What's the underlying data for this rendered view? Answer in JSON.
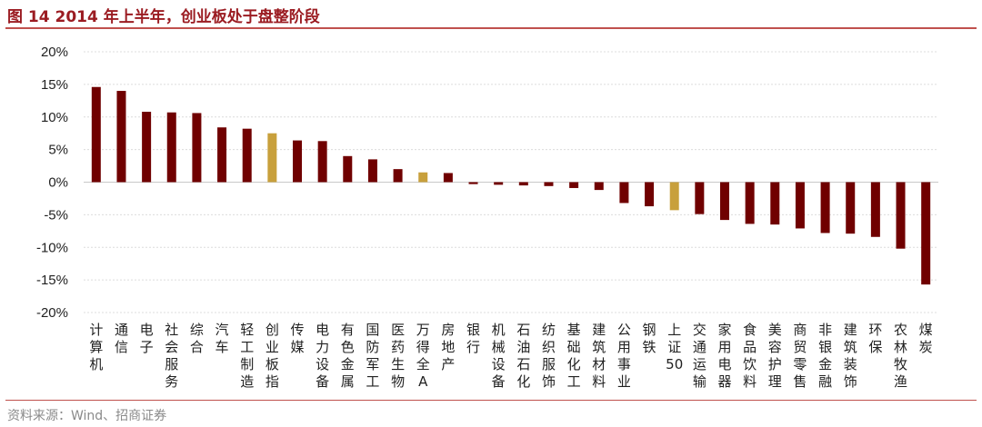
{
  "header": {
    "title": "图 14 2014 年上半年，创业板处于盘整阶段"
  },
  "footer": {
    "source": "资料来源：Wind、招商证券"
  },
  "colors": {
    "main": "#700000",
    "highlight": "#c8a03c",
    "grid": "#dcdcdc",
    "accent": "#9b1c22"
  },
  "chart_data": {
    "type": "bar",
    "title": "",
    "xlabel": "",
    "ylabel": "",
    "ylim": [
      -20,
      20
    ],
    "yticks": [
      20,
      15,
      10,
      5,
      0,
      -5,
      -10,
      -15,
      -20
    ],
    "ytick_labels": [
      "20%",
      "15%",
      "10%",
      "5%",
      "0%",
      "-5%",
      "-10%",
      "-15%",
      "-20%"
    ],
    "grid": true,
    "categories": [
      "计算机",
      "通信",
      "电子",
      "社会服务",
      "综合",
      "汽车",
      "轻工制造",
      "创业板指",
      "传媒",
      "电力设备",
      "有色金属",
      "国防军工",
      "医药生物",
      "万得全A",
      "房地产",
      "银行",
      "机械设备",
      "石油石化",
      "纺织服饰",
      "基础化工",
      "建筑材料",
      "公用事业",
      "钢铁",
      "上证50",
      "交通运输",
      "家用电器",
      "食品饮料",
      "美容护理",
      "商贸零售",
      "非银金融",
      "建筑装饰",
      "环保",
      "农林牧渔",
      "煤炭"
    ],
    "values": [
      14.6,
      14.0,
      10.8,
      10.7,
      10.6,
      8.4,
      8.2,
      7.5,
      6.4,
      6.3,
      4.0,
      3.5,
      2.0,
      1.5,
      1.4,
      -0.3,
      -0.4,
      -0.5,
      -0.6,
      -0.9,
      -1.2,
      -3.2,
      -3.7,
      -4.3,
      -4.9,
      -5.8,
      -6.4,
      -6.5,
      -7.1,
      -7.8,
      -7.9,
      -8.4,
      -10.2,
      -15.7
    ],
    "highlight_categories": [
      "创业板指",
      "万得全A",
      "上证50"
    ]
  }
}
